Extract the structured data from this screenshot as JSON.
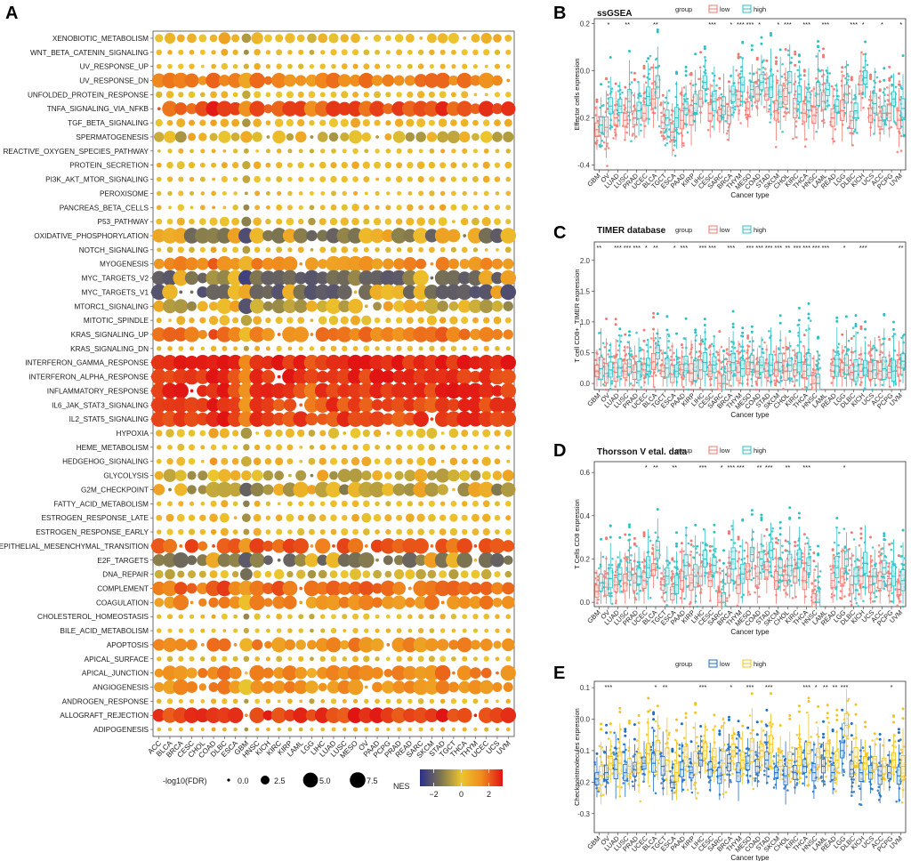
{
  "panel_labels": [
    "A",
    "B",
    "C",
    "D",
    "E"
  ],
  "chart_data": [
    {
      "panel": "A",
      "type": "scatter",
      "subtype": "bubble-matrix",
      "title": "",
      "xlabel": "",
      "ylabel": "",
      "cancers": [
        "ACC",
        "BLCA",
        "BRCA",
        "CESC",
        "CHOL",
        "COAD",
        "DLBC",
        "ESCA",
        "GBM",
        "HNSC",
        "KICH",
        "KIRC",
        "KIRP",
        "LAML",
        "LGG",
        "LIHC",
        "LUAD",
        "LUSC",
        "MESO",
        "OV",
        "PAAD",
        "PCPG",
        "PRAD",
        "READ",
        "SARC",
        "SKCM",
        "STAD",
        "TGCT",
        "THCA",
        "THYM",
        "UCEC",
        "UCS",
        "UVM"
      ],
      "pathways": [
        "XENOBIOTIC_METABOLISM",
        "WNT_BETA_CATENIN_SIGNALING",
        "UV_RESPONSE_UP",
        "UV_RESPONSE_DN",
        "UNFOLDED_PROTEIN_RESPONSE",
        "TNFA_SIGNALING_VIA_NFKB",
        "TGF_BETA_SIGNALING",
        "SPERMATOGENESIS",
        "REACTIVE_OXYGEN_SPECIES_PATHWAY",
        "PROTEIN_SECRETION",
        "PI3K_AKT_MTOR_SIGNALING",
        "PEROXISOME",
        "PANCREAS_BETA_CELLS",
        "P53_PATHWAY",
        "OXIDATIVE_PHOSPHORYLATION",
        "NOTCH_SIGNALING",
        "MYOGENESIS",
        "MYC_TARGETS_V2",
        "MYC_TARGETS_V1",
        "MTORC1_SIGNALING",
        "MITOTIC_SPINDLE",
        "KRAS_SIGNALING_UP",
        "KRAS_SIGNALING_DN",
        "INTERFERON_GAMMA_RESPONSE",
        "INTERFERON_ALPHA_RESPONSE",
        "INFLAMMATORY_RESPONSE",
        "IL6_JAK_STAT3_SIGNALING",
        "IL2_STAT5_SIGNALING",
        "HYPOXIA",
        "HEME_METABOLISM",
        "HEDGEHOG_SIGNALING",
        "GLYCOLYSIS",
        "G2M_CHECKPOINT",
        "FATTY_ACID_METABOLISM",
        "ESTROGEN_RESPONSE_LATE",
        "ESTROGEN_RESPONSE_EARLY",
        "EPITHELIAL_MESENCHYMAL_TRANSITION",
        "E2F_TARGETS",
        "DNA_REPAIR",
        "COMPLEMENT",
        "COAGULATION",
        "CHOLESTEROL_HOMEOSTASIS",
        "BILE_ACID_METABOLISM",
        "APOPTOSIS",
        "APICAL_SURFACE",
        "APICAL_JUNCTION",
        "ANGIOGENESIS",
        "ANDROGEN_RESPONSE",
        "ALLOGRAFT_REJECTION",
        "ADIPOGENESIS"
      ],
      "row_nes": [
        0.3,
        0.2,
        0.2,
        1.6,
        0.1,
        2.2,
        0.4,
        -0.5,
        0.1,
        0.3,
        0.2,
        0.1,
        0.3,
        0.1,
        -1.6,
        0.1,
        1.3,
        -1.7,
        -1.9,
        -0.8,
        0.3,
        1.6,
        0.2,
        2.8,
        2.6,
        2.6,
        2.4,
        2.4,
        0.2,
        0.1,
        0.4,
        -0.6,
        -1.0,
        0.1,
        0.3,
        0.2,
        2.0,
        -1.5,
        -0.3,
        1.9,
        1.4,
        0.1,
        0.1,
        1.3,
        0.1,
        1.4,
        1.3,
        0.2,
        2.5,
        0.1
      ],
      "row_size": [
        2.5,
        1.2,
        1.0,
        4.6,
        1.5,
        5.5,
        1.8,
        3.3,
        0.8,
        1.5,
        1.2,
        0.8,
        1.2,
        1.8,
        5.8,
        1.2,
        4.3,
        5.8,
        6.5,
        3.8,
        2.0,
        4.6,
        0.9,
        6.5,
        6.3,
        6.6,
        6.0,
        6.0,
        2.3,
        1.2,
        1.8,
        3.3,
        4.5,
        1.2,
        1.8,
        1.5,
        6.1,
        4.5,
        2.3,
        5.5,
        4.3,
        1.0,
        0.8,
        4.0,
        1.0,
        4.3,
        4.0,
        0.9,
        6.3,
        0.5
      ],
      "cancer_scale": [
        0.8,
        1.0,
        1.1,
        0.9,
        0.7,
        1.0,
        1.2,
        0.9,
        1.3,
        1.2,
        0.7,
        1.0,
        0.9,
        1.0,
        0.9,
        0.9,
        1.1,
        1.0,
        1.2,
        1.2,
        0.9,
        0.8,
        1.0,
        1.0,
        1.1,
        1.1,
        1.1,
        1.0,
        1.0,
        0.9,
        1.1,
        0.8,
        0.9
      ],
      "cancer_shift": [
        0,
        0,
        0,
        0,
        0,
        0.4,
        0.3,
        0,
        -1.0,
        0.2,
        0,
        0,
        0,
        0,
        -0.5,
        0,
        0,
        0,
        0.2,
        0,
        0,
        0,
        0,
        0,
        0,
        0,
        0.2,
        0,
        0,
        0,
        0.1,
        0,
        0
      ],
      "size_legend": {
        "title": "-log10(FDR)",
        "values": [
          0.0,
          2.5,
          5.0,
          7.5
        ],
        "labels": [
          "0.0",
          "2.5",
          "5.0",
          "7.5"
        ]
      },
      "color_legend": {
        "title": "NES",
        "range": [
          -3,
          3
        ],
        "ticks": [
          -2,
          0,
          2
        ],
        "tick_labels": [
          "−2",
          "0",
          "2"
        ],
        "colors": [
          "#2b2f8c",
          "#7c7451",
          "#ecc62e",
          "#f08a1d",
          "#e11414"
        ]
      }
    },
    {
      "panel": "B",
      "type": "box",
      "title": "ssGSEA",
      "ylabel": "Effector cells expression",
      "xlabel": "Cancer type",
      "ylim": [
        -0.42,
        0.22
      ],
      "yticks": [
        -0.4,
        -0.2,
        0.0,
        0.2
      ],
      "ytick_labels": [
        "-0.4",
        "-0.2",
        "0.0",
        "0.2"
      ],
      "legend": {
        "title": "group",
        "labels": [
          "low",
          "high"
        ],
        "colors": [
          "#f07a72",
          "#2ec0c4"
        ]
      },
      "significance": [
        "",
        "*",
        "",
        "**",
        "",
        "",
        "**",
        "",
        "",
        "",
        "",
        "",
        "***",
        "",
        "*",
        "***",
        "***",
        "*",
        "",
        "*",
        "***",
        "",
        "***",
        "",
        "***",
        "",
        "",
        "***",
        "*",
        "",
        "*",
        "",
        "*"
      ],
      "median_low": [
        -0.25,
        -0.24,
        -0.2,
        -0.21,
        -0.2,
        -0.18,
        -0.12,
        -0.22,
        -0.26,
        -0.21,
        -0.19,
        -0.12,
        -0.18,
        -0.19,
        -0.19,
        -0.12,
        -0.16,
        -0.1,
        -0.1,
        -0.17,
        -0.11,
        -0.16,
        -0.18,
        -0.19,
        -0.13,
        -0.2,
        -0.17,
        -0.21,
        -0.06,
        -0.19,
        -0.21,
        -0.18,
        -0.21
      ],
      "median_high": [
        -0.23,
        -0.15,
        -0.15,
        -0.13,
        -0.17,
        -0.11,
        -0.07,
        -0.2,
        -0.2,
        -0.16,
        -0.14,
        -0.05,
        -0.13,
        -0.15,
        -0.1,
        -0.06,
        -0.08,
        -0.05,
        -0.07,
        -0.11,
        -0.05,
        -0.1,
        -0.13,
        -0.1,
        -0.08,
        -0.15,
        -0.1,
        -0.17,
        -0.03,
        -0.14,
        -0.18,
        -0.12,
        -0.16
      ]
    },
    {
      "panel": "C",
      "type": "box",
      "title": "TIMER database",
      "ylabel": "T cell CD8+_TIMER expression",
      "xlabel": "Cancer type",
      "ylim": [
        -0.1,
        2.3
      ],
      "yticks": [
        0.0,
        0.5,
        1.0,
        1.5,
        2.0
      ],
      "ytick_labels": [
        "0.0",
        "0.5",
        "1.0",
        "1.5",
        "2.0"
      ],
      "legend": {
        "title": "group",
        "labels": [
          "low",
          "high"
        ],
        "colors": [
          "#f07a72",
          "#2ec0c4"
        ]
      },
      "significance": [
        "**",
        "",
        "***",
        "***",
        "***",
        "*",
        "**",
        "",
        "*",
        "***",
        "",
        "***",
        "***",
        "",
        "***",
        "",
        "***",
        "***",
        "***",
        "***",
        "**",
        "***",
        "***",
        "***",
        "***",
        "",
        "*",
        "",
        "***",
        "",
        "",
        "",
        "**"
      ],
      "missing": [
        "LAML"
      ],
      "median_low": [
        0.2,
        0.16,
        0.18,
        0.2,
        0.18,
        0.22,
        0.35,
        0.2,
        0.15,
        0.22,
        0.17,
        0.22,
        0.2,
        0.0,
        0.2,
        0.18,
        0.24,
        0.2,
        0.2,
        0.22,
        0.2,
        0.22,
        0.2,
        0.0,
        0.22,
        0.2,
        0.22,
        0.18,
        0.2,
        0.2,
        0.2,
        0.18,
        0.26
      ],
      "median_high": [
        0.24,
        0.22,
        0.25,
        0.27,
        0.2,
        0.3,
        0.5,
        0.25,
        0.2,
        0.32,
        0.2,
        0.34,
        0.3,
        0.0,
        0.34,
        0.24,
        0.34,
        0.3,
        0.3,
        0.34,
        0.3,
        0.34,
        0.3,
        0.0,
        0.34,
        0.28,
        0.3,
        0.2,
        0.25,
        0.22,
        0.24,
        0.2,
        0.36
      ]
    },
    {
      "panel": "D",
      "type": "box",
      "title": "Thorsson V etal. data",
      "ylabel": "T Cells CD8 expression",
      "xlabel": "Cancer type",
      "ylim": [
        -0.02,
        0.65
      ],
      "yticks": [
        0.0,
        0.2,
        0.4,
        0.6
      ],
      "ytick_labels": [
        "0.0",
        "0.2",
        "0.4",
        "0.6"
      ],
      "legend": {
        "title": "group",
        "labels": [
          "low",
          "high"
        ],
        "colors": [
          "#f07a72",
          "#2ec0c4"
        ]
      },
      "significance": [
        "",
        "",
        "",
        "",
        "",
        "*",
        "**",
        "",
        "**",
        "",
        "",
        "***",
        "",
        "*",
        "***",
        "***",
        "",
        "**",
        "***",
        "",
        "**",
        "",
        "***",
        "",
        "",
        "",
        "*",
        "",
        "",
        "",
        "",
        "",
        ""
      ],
      "missing": [
        "LAML"
      ],
      "median_low": [
        0.05,
        0.07,
        0.08,
        0.09,
        0.09,
        0.1,
        0.15,
        0.08,
        0.04,
        0.1,
        0.09,
        0.12,
        0.1,
        0.0,
        0.12,
        0.08,
        0.14,
        0.12,
        0.15,
        0.1,
        0.1,
        0.12,
        0.1,
        0.0,
        0.1,
        0.1,
        0.12,
        0.08,
        0.12,
        0.08,
        0.1,
        0.08,
        0.06
      ],
      "median_high": [
        0.09,
        0.11,
        0.13,
        0.14,
        0.12,
        0.16,
        0.24,
        0.12,
        0.08,
        0.17,
        0.12,
        0.2,
        0.17,
        0.0,
        0.2,
        0.13,
        0.22,
        0.2,
        0.24,
        0.16,
        0.17,
        0.2,
        0.17,
        0.0,
        0.17,
        0.16,
        0.2,
        0.12,
        0.18,
        0.12,
        0.16,
        0.12,
        0.1
      ]
    },
    {
      "panel": "E",
      "type": "box",
      "title": "",
      "ylabel": "Checkpointmolecules expression",
      "xlabel": "Cancer type",
      "ylim": [
        -0.36,
        0.12
      ],
      "yticks": [
        -0.3,
        -0.2,
        -0.1,
        0.0,
        0.1
      ],
      "ytick_labels": [
        "-0.3",
        "-0.2",
        "-0.1",
        "0.0",
        "0.1"
      ],
      "legend": {
        "title": "group",
        "labels": [
          "low",
          "high"
        ],
        "colors": [
          "#1f6fc4",
          "#f2c31f"
        ]
      },
      "significance": [
        "",
        "***",
        "",
        "",
        "",
        "",
        "*",
        "**",
        "",
        "",
        "",
        "***",
        "",
        "",
        "*",
        "",
        "***",
        "",
        "***",
        "",
        "",
        "",
        "***",
        "*",
        "**",
        "**",
        "***",
        "",
        "",
        "",
        "",
        "*",
        ""
      ],
      "median_low": [
        -0.19,
        -0.17,
        -0.16,
        -0.17,
        -0.16,
        -0.14,
        -0.14,
        -0.15,
        -0.2,
        -0.16,
        -0.17,
        -0.13,
        -0.16,
        -0.18,
        -0.14,
        -0.17,
        -0.14,
        -0.15,
        -0.13,
        -0.17,
        -0.18,
        -0.17,
        -0.15,
        -0.17,
        -0.15,
        -0.17,
        -0.1,
        -0.16,
        -0.17,
        -0.17,
        -0.18,
        -0.17,
        -0.18
      ],
      "median_high": [
        -0.18,
        -0.14,
        -0.14,
        -0.15,
        -0.14,
        -0.11,
        -0.1,
        -0.13,
        -0.17,
        -0.12,
        -0.14,
        -0.1,
        -0.12,
        -0.14,
        -0.1,
        -0.13,
        -0.1,
        -0.1,
        -0.08,
        -0.13,
        -0.13,
        -0.12,
        -0.11,
        -0.12,
        -0.1,
        -0.13,
        -0.02,
        -0.12,
        -0.14,
        -0.14,
        -0.15,
        -0.13,
        -0.15
      ]
    }
  ]
}
